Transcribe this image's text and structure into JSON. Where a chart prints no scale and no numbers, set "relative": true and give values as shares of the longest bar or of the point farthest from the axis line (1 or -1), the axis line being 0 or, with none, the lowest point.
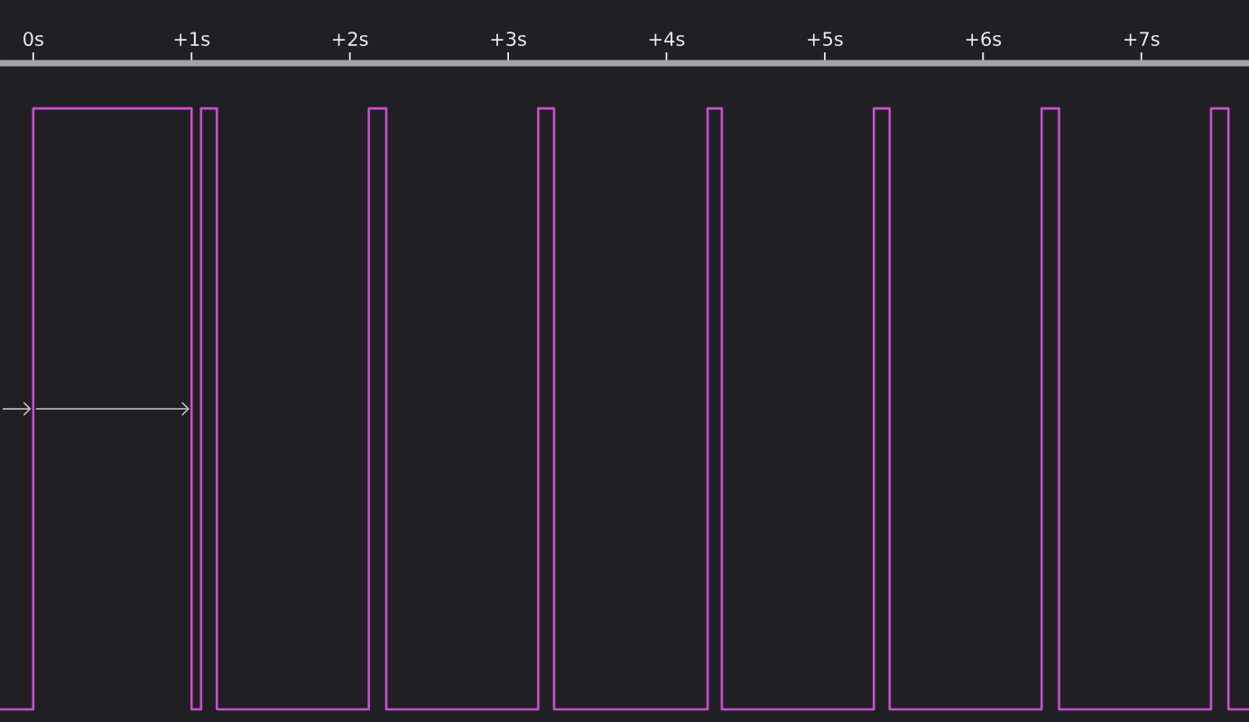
{
  "chart_data": {
    "type": "step",
    "relative": true,
    "x": [
      -0.21,
      0,
      1.0,
      1.06,
      1.16,
      2.12,
      2.23,
      3.19,
      3.29,
      4.26,
      4.35,
      5.31,
      5.41,
      6.37,
      6.48,
      7.44,
      7.55,
      7.68
    ],
    "values": [
      -1,
      -0.07,
      -1,
      -0.07,
      -1,
      -0.07,
      -1,
      -0.07,
      -1,
      -0.07,
      -1,
      -0.07,
      -1,
      -0.07,
      -1,
      -0.07,
      -1,
      -1
    ],
    "color": "#c94fcf",
    "xlim": [
      -0.21,
      7.68
    ],
    "xticks": [
      {
        "value": 0,
        "label": "0s"
      },
      {
        "value": 1,
        "label": "+1s"
      },
      {
        "value": 2,
        "label": "+2s"
      },
      {
        "value": 3,
        "label": "+3s"
      },
      {
        "value": 4,
        "label": "+4s"
      },
      {
        "value": 5,
        "label": "+5s"
      },
      {
        "value": 6,
        "label": "+6s"
      },
      {
        "value": 7,
        "label": "+7s"
      }
    ]
  }
}
